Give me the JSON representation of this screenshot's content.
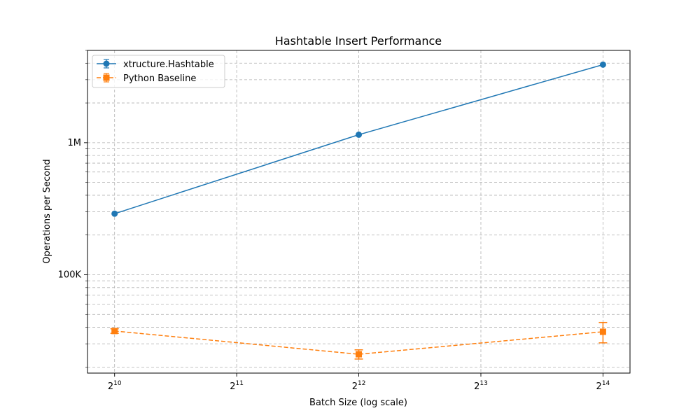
{
  "chart_data": {
    "type": "line",
    "title": "Hashtable Insert Performance",
    "xlabel": "Batch Size (log scale)",
    "ylabel": "Operations per Second",
    "x_scale": "log2",
    "y_scale": "log10",
    "xlim": [
      878,
      19100
    ],
    "ylim": [
      18000,
      5000000
    ],
    "grid": true,
    "legend_position": "top-left",
    "x": [
      1024,
      4096,
      16384
    ],
    "x_ticks": [
      {
        "base": "2",
        "exp": "10",
        "value": 1024
      },
      {
        "base": "2",
        "exp": "11",
        "value": 2048
      },
      {
        "base": "2",
        "exp": "12",
        "value": 4096
      },
      {
        "base": "2",
        "exp": "13",
        "value": 8192
      },
      {
        "base": "2",
        "exp": "14",
        "value": 16384
      }
    ],
    "y_ticks": [
      {
        "label": "100K",
        "value": 100000
      },
      {
        "label": "1M",
        "value": 1000000
      }
    ],
    "series": [
      {
        "name": "xtructure.Hashtable",
        "color": "#1f77b4",
        "linestyle": "solid",
        "marker": "circle",
        "values": [
          290000,
          1150000,
          3900000
        ],
        "errors": [
          0,
          0,
          0
        ]
      },
      {
        "name": "Python Baseline",
        "color": "#ff7f0e",
        "linestyle": "dashed",
        "marker": "square",
        "values": [
          37500,
          25000,
          37000
        ],
        "errors": [
          1500,
          2000,
          6500
        ]
      }
    ]
  }
}
